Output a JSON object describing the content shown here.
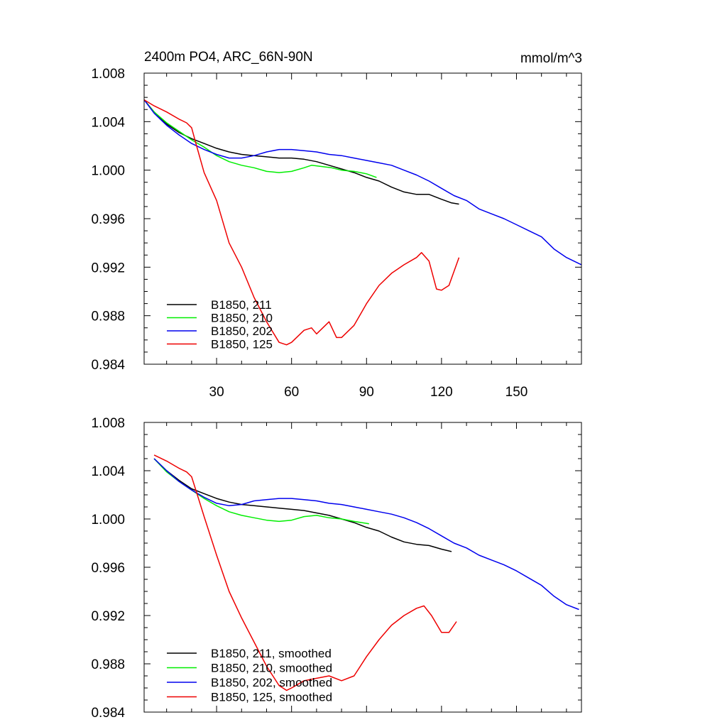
{
  "page": {
    "title": "2400m PO4, ARC_66N-90N",
    "units": "mmol/m^3"
  },
  "chart_data": [
    {
      "type": "line",
      "title": "2400m PO4, ARC_66N-90N",
      "units_label": "mmol/m^3",
      "xlabel": "",
      "ylabel": "",
      "xlim": [
        1,
        176
      ],
      "ylim": [
        0.984,
        1.008
      ],
      "xticks": [
        30,
        60,
        90,
        120,
        150
      ],
      "xtick_labels": [
        "30",
        "60",
        "90",
        "120",
        "150"
      ],
      "yticks": [
        0.984,
        0.988,
        0.992,
        0.996,
        1.0,
        1.004,
        1.008
      ],
      "ytick_labels": [
        "0.984",
        "0.988",
        "0.992",
        "0.996",
        "1.000",
        "1.004",
        "1.008"
      ],
      "legend_position": "bottom-left",
      "grid": false,
      "series": [
        {
          "name": "B1850, 211",
          "color": "#000000",
          "x": [
            1,
            5,
            10,
            15,
            20,
            25,
            30,
            35,
            40,
            45,
            50,
            55,
            60,
            65,
            70,
            75,
            80,
            85,
            90,
            95,
            100,
            105,
            110,
            115,
            120,
            124,
            127
          ],
          "y": [
            1.0058,
            1.0048,
            1.0038,
            1.0031,
            1.0026,
            1.0022,
            1.0018,
            1.0015,
            1.0013,
            1.0012,
            1.0011,
            1.001,
            1.001,
            1.0009,
            1.0007,
            1.0004,
            1.0001,
            0.9998,
            0.9994,
            0.9991,
            0.9986,
            0.9982,
            0.998,
            0.998,
            0.9976,
            0.9973,
            0.9972
          ]
        },
        {
          "name": "B1850, 210",
          "color": "#00ee00",
          "x": [
            1,
            5,
            10,
            15,
            20,
            25,
            30,
            35,
            40,
            45,
            50,
            55,
            60,
            65,
            68,
            72,
            76,
            80,
            85,
            90,
            94
          ],
          "y": [
            1.0058,
            1.0048,
            1.0039,
            1.0032,
            1.0025,
            1.0019,
            1.0012,
            1.0007,
            1.0004,
            1.0002,
            0.9999,
            0.9998,
            0.9999,
            1.0002,
            1.0004,
            1.0003,
            1.0002,
            1.0,
            0.9999,
            0.9997,
            0.9994
          ]
        },
        {
          "name": "B1850, 202",
          "color": "#0000ee",
          "x": [
            1,
            5,
            10,
            15,
            20,
            25,
            30,
            35,
            40,
            45,
            50,
            55,
            60,
            65,
            70,
            75,
            80,
            85,
            90,
            95,
            100,
            105,
            110,
            115,
            120,
            125,
            130,
            135,
            140,
            145,
            150,
            155,
            160,
            165,
            170,
            176
          ],
          "y": [
            1.0058,
            1.0047,
            1.0037,
            1.0029,
            1.0022,
            1.0017,
            1.0013,
            1.001,
            1.001,
            1.0012,
            1.0015,
            1.0017,
            1.0017,
            1.0016,
            1.0015,
            1.0013,
            1.0012,
            1.001,
            1.0008,
            1.0006,
            1.0004,
            1.0,
            0.9996,
            0.9991,
            0.9985,
            0.9979,
            0.9975,
            0.9968,
            0.9964,
            0.996,
            0.9955,
            0.995,
            0.9945,
            0.9935,
            0.9928,
            0.9922
          ]
        },
        {
          "name": "B1850, 125",
          "color": "#ee0000",
          "x": [
            1,
            5,
            10,
            15,
            18,
            20,
            22,
            25,
            30,
            35,
            40,
            45,
            50,
            55,
            58,
            60,
            65,
            68,
            70,
            75,
            78,
            80,
            85,
            90,
            95,
            100,
            105,
            110,
            112,
            115,
            118,
            120,
            123,
            127
          ],
          "y": [
            1.0058,
            1.0053,
            1.0048,
            1.0042,
            1.0039,
            1.0035,
            1.002,
            0.9998,
            0.9975,
            0.994,
            0.992,
            0.9895,
            0.9875,
            0.9858,
            0.9856,
            0.9858,
            0.9868,
            0.987,
            0.9865,
            0.9875,
            0.9862,
            0.9862,
            0.9872,
            0.989,
            0.9905,
            0.9915,
            0.9922,
            0.9928,
            0.9932,
            0.9925,
            0.9902,
            0.9901,
            0.9905,
            0.9928
          ]
        }
      ]
    },
    {
      "type": "line",
      "title": "",
      "xlabel": "",
      "ylabel": "",
      "xlim": [
        1,
        176
      ],
      "ylim": [
        0.984,
        1.008
      ],
      "xticks": [
        30,
        60,
        90,
        120,
        150
      ],
      "yticks": [
        0.984,
        0.988,
        0.992,
        0.996,
        1.0,
        1.004,
        1.008
      ],
      "ytick_labels": [
        "0.984",
        "0.988",
        "0.992",
        "0.996",
        "1.000",
        "1.004",
        "1.008"
      ],
      "legend_position": "bottom-left",
      "grid": false,
      "series": [
        {
          "name": "B1850, 211, smoothed",
          "color": "#000000",
          "x": [
            5,
            10,
            15,
            20,
            25,
            30,
            35,
            40,
            45,
            50,
            55,
            60,
            65,
            70,
            75,
            80,
            85,
            90,
            95,
            100,
            105,
            110,
            115,
            120,
            124
          ],
          "y": [
            1.005,
            1.004,
            1.0032,
            1.0025,
            1.0021,
            1.0017,
            1.0014,
            1.0012,
            1.0011,
            1.001,
            1.0009,
            1.0008,
            1.0007,
            1.0005,
            1.0003,
            1.0,
            0.9997,
            0.9993,
            0.999,
            0.9985,
            0.9981,
            0.9979,
            0.9978,
            0.9975,
            0.9973
          ]
        },
        {
          "name": "B1850, 210, smoothed",
          "color": "#00ee00",
          "x": [
            5,
            10,
            15,
            20,
            25,
            30,
            35,
            40,
            45,
            50,
            55,
            60,
            65,
            70,
            75,
            80,
            85,
            91
          ],
          "y": [
            1.005,
            1.0039,
            1.0031,
            1.0024,
            1.0017,
            1.0011,
            1.0006,
            1.0003,
            1.0001,
            0.9999,
            0.9998,
            0.9999,
            1.0002,
            1.0003,
            1.0001,
            1.0,
            0.9998,
            0.9996
          ]
        },
        {
          "name": "B1850, 202, smoothed",
          "color": "#0000ee",
          "x": [
            5,
            10,
            15,
            20,
            25,
            30,
            35,
            40,
            45,
            50,
            55,
            60,
            65,
            70,
            75,
            80,
            85,
            90,
            95,
            100,
            105,
            110,
            115,
            120,
            125,
            130,
            135,
            140,
            145,
            150,
            155,
            160,
            165,
            170,
            175
          ],
          "y": [
            1.005,
            1.004,
            1.0031,
            1.0024,
            1.0018,
            1.0013,
            1.0011,
            1.0012,
            1.0015,
            1.0016,
            1.0017,
            1.0017,
            1.0016,
            1.0015,
            1.0013,
            1.0012,
            1.001,
            1.0008,
            1.0006,
            1.0004,
            1.0001,
            0.9997,
            0.9992,
            0.9986,
            0.998,
            0.9976,
            0.997,
            0.9966,
            0.9962,
            0.9957,
            0.9951,
            0.9945,
            0.9936,
            0.9929,
            0.9925
          ]
        },
        {
          "name": "B1850, 125, smoothed",
          "color": "#ee0000",
          "x": [
            5,
            10,
            15,
            18,
            20,
            22,
            25,
            30,
            35,
            40,
            45,
            50,
            55,
            58,
            60,
            65,
            70,
            75,
            80,
            85,
            90,
            95,
            100,
            105,
            110,
            113,
            116,
            120,
            123,
            126
          ],
          "y": [
            1.0053,
            1.0048,
            1.0042,
            1.0039,
            1.0035,
            1.0022,
            1.0002,
            0.997,
            0.994,
            0.9918,
            0.9898,
            0.9878,
            0.9862,
            0.9858,
            0.986,
            0.9866,
            0.9868,
            0.987,
            0.9866,
            0.987,
            0.9886,
            0.99,
            0.9912,
            0.992,
            0.9926,
            0.9928,
            0.992,
            0.9906,
            0.9906,
            0.9915
          ]
        }
      ]
    }
  ]
}
